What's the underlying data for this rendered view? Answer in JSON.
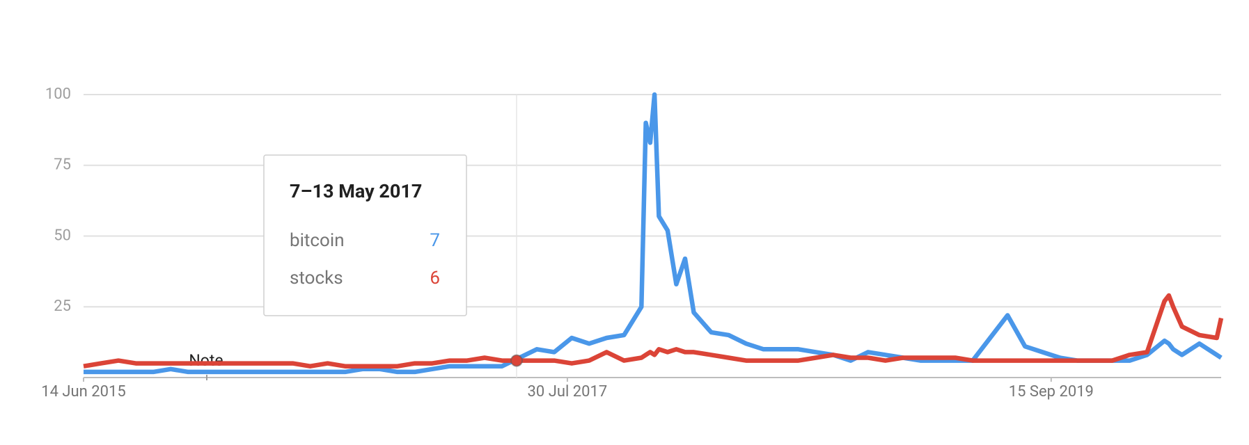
{
  "chart_data": {
    "type": "line",
    "x": [
      "2015-06-14",
      "2015-07-12",
      "2015-08-09",
      "2015-09-06",
      "2015-10-04",
      "2015-11-01",
      "2015-11-29",
      "2015-12-27",
      "2016-01-24",
      "2016-02-21",
      "2016-03-20",
      "2016-04-17",
      "2016-05-15",
      "2016-06-12",
      "2016-07-10",
      "2016-08-07",
      "2016-09-04",
      "2016-10-02",
      "2016-10-30",
      "2016-11-27",
      "2016-12-25",
      "2017-01-22",
      "2017-02-19",
      "2017-03-19",
      "2017-04-16",
      "2017-05-14",
      "2017-06-11",
      "2017-07-09",
      "2017-08-06",
      "2017-09-03",
      "2017-10-01",
      "2017-10-29",
      "2017-11-26",
      "2017-12-03",
      "2017-12-10",
      "2017-12-17",
      "2017-12-24",
      "2018-01-07",
      "2018-01-21",
      "2018-02-04",
      "2018-02-18",
      "2018-03-18",
      "2018-04-15",
      "2018-05-13",
      "2018-06-10",
      "2018-07-08",
      "2018-08-05",
      "2018-09-02",
      "2018-09-30",
      "2018-10-28",
      "2018-11-25",
      "2018-12-23",
      "2019-01-20",
      "2019-02-17",
      "2019-03-17",
      "2019-04-14",
      "2019-05-12",
      "2019-06-09",
      "2019-07-07",
      "2019-08-04",
      "2019-09-01",
      "2019-09-29",
      "2019-10-27",
      "2019-11-24",
      "2019-12-22",
      "2020-01-19",
      "2020-02-16",
      "2020-03-15",
      "2020-03-22",
      "2020-03-29",
      "2020-04-12",
      "2020-05-10",
      "2020-06-07",
      "2020-06-14"
    ],
    "series": [
      {
        "name": "bitcoin",
        "color": "#4a97e9",
        "values": [
          2,
          2,
          2,
          2,
          2,
          3,
          2,
          2,
          2,
          2,
          2,
          2,
          2,
          2,
          2,
          2,
          3,
          3,
          2,
          2,
          3,
          4,
          4,
          4,
          4,
          7,
          10,
          9,
          14,
          12,
          14,
          15,
          25,
          90,
          83,
          100,
          57,
          52,
          33,
          42,
          23,
          16,
          15,
          12,
          10,
          10,
          10,
          9,
          8,
          6,
          9,
          8,
          7,
          6,
          6,
          6,
          6,
          14,
          22,
          11,
          9,
          7,
          6,
          6,
          6,
          6,
          8,
          13,
          12,
          10,
          8,
          12,
          8,
          7
        ]
      },
      {
        "name": "stocks",
        "color": "#db4437",
        "values": [
          4,
          5,
          6,
          5,
          5,
          5,
          5,
          5,
          5,
          5,
          5,
          5,
          5,
          4,
          5,
          4,
          4,
          4,
          4,
          5,
          5,
          6,
          6,
          7,
          6,
          6,
          6,
          6,
          5,
          6,
          9,
          6,
          7,
          8,
          9,
          8,
          10,
          9,
          10,
          9,
          9,
          8,
          7,
          6,
          6,
          6,
          6,
          7,
          8,
          7,
          7,
          6,
          7,
          7,
          7,
          7,
          6,
          6,
          6,
          6,
          6,
          6,
          6,
          6,
          6,
          8,
          9,
          27,
          29,
          25,
          18,
          15,
          14,
          21
        ]
      }
    ],
    "xlim": [
      "2015-06-14",
      "2020-06-14"
    ],
    "xticks": [
      {
        "value": "2015-06-14",
        "label": "14 Jun 2015"
      },
      {
        "value": "2017-07-30",
        "label": "30 Jul 2017"
      },
      {
        "value": "2019-09-15",
        "label": "15 Sep 2019"
      }
    ],
    "ylim": [
      0,
      100
    ],
    "yticks": [
      25,
      50,
      75,
      100
    ],
    "grid": true,
    "annotation": "Note",
    "tooltip": {
      "title": "7–13 May 2017",
      "series": [
        {
          "name": "bitcoin",
          "value": 7
        },
        {
          "name": "stocks",
          "value": 6
        }
      ]
    }
  }
}
